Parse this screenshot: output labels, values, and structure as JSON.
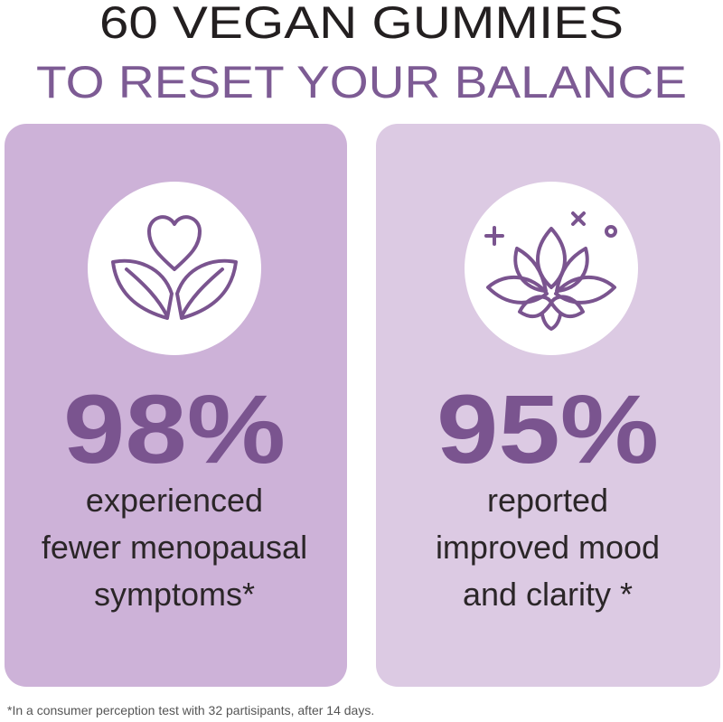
{
  "header": {
    "title_line1": "60 VEGAN GUMMIES",
    "title_line2": "TO RESET YOUR BALANCE"
  },
  "cards": [
    {
      "stat": "98%",
      "description": [
        "experienced",
        "fewer menopausal",
        "symptoms*"
      ]
    },
    {
      "stat": "95%",
      "description": [
        "reported",
        "improved mood",
        "and clarity *"
      ]
    }
  ],
  "footnote": "*In a consumer perception test with 32 partisipants, after 14 days."
}
